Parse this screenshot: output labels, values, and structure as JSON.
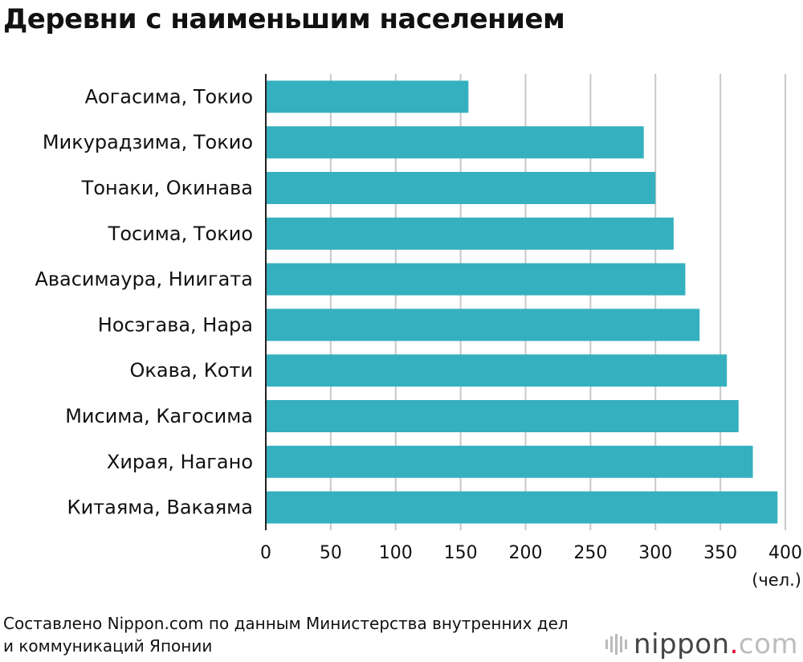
{
  "title": "Деревни с наименьшим населением",
  "source_line1": "Составлено Nippon.com по данным Министерства внутренних дел",
  "source_line2": "и коммуникаций Японии",
  "logo": {
    "name": "nippon",
    "dot": ".",
    "com": "com"
  },
  "colors": {
    "bar": "#35b0be",
    "grid": "#c8c8c8",
    "axis": "#222222"
  },
  "chart_data": {
    "type": "bar",
    "orientation": "horizontal",
    "categories": [
      "Аогасима, Токио",
      "Микурадзима, Токио",
      "Тонаки, Окинава",
      "Тосима, Токио",
      "Авасимаура, Ниигата",
      "Носэгава, Нара",
      "Окава, Коти",
      "Мисима, Кагосима",
      "Хирая, Нагано",
      "Китаяма, Вакаяма"
    ],
    "values": [
      156,
      291,
      300,
      314,
      323,
      334,
      355,
      364,
      375,
      394
    ],
    "xlim": [
      0,
      400
    ],
    "xticks": [
      0,
      50,
      100,
      150,
      200,
      250,
      300,
      350,
      400
    ],
    "xunit": "(чел.)",
    "grid": true
  }
}
